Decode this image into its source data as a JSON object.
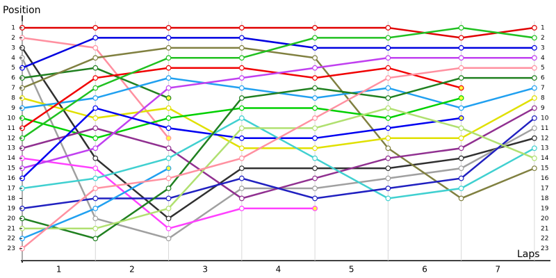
{
  "chart_data": {
    "type": "line",
    "x_label": "Laps",
    "y_label": "Position",
    "x": [
      0,
      1,
      2,
      3,
      4,
      5,
      6,
      7
    ],
    "xlim": [
      0,
      7.2
    ],
    "xticks": [
      {
        "value": 0.5,
        "label": "1"
      },
      {
        "value": 1.5,
        "label": "2"
      },
      {
        "value": 2.5,
        "label": "3"
      },
      {
        "value": 3.5,
        "label": "4"
      },
      {
        "value": 4.5,
        "label": "5"
      },
      {
        "value": 5.5,
        "label": "6"
      },
      {
        "value": 6.5,
        "label": "7"
      }
    ],
    "ylim": [
      24.2,
      0
    ],
    "yticks": [
      1,
      2,
      3,
      4,
      5,
      6,
      7,
      8,
      9,
      10,
      11,
      12,
      13,
      14,
      15,
      16,
      17,
      18,
      19,
      20,
      21,
      22,
      23
    ],
    "grid": true,
    "series": [
      {
        "color": "#e00000",
        "values": [
          1,
          1,
          1,
          1,
          1,
          1,
          2,
          1
        ]
      },
      {
        "color": "#ff90a0",
        "values": [
          2,
          3,
          12,
          null,
          null,
          null,
          null,
          null
        ]
      },
      {
        "color": "#303030",
        "values": [
          3,
          14,
          20,
          15,
          15,
          15,
          14,
          12
        ]
      },
      {
        "color": "#a0a0a0",
        "values": [
          4,
          20,
          22,
          17,
          17,
          16,
          15,
          11
        ]
      },
      {
        "color": "#0000e0",
        "values": [
          5,
          2,
          2,
          2,
          3,
          3,
          3,
          3
        ]
      },
      {
        "color": "#208020",
        "values": [
          6,
          5,
          8,
          null,
          null,
          null,
          null,
          null
        ]
      },
      {
        "color": "#808040",
        "values": [
          7,
          4,
          3,
          3,
          4,
          13,
          18,
          15
        ]
      },
      {
        "color": "#e0e000",
        "values": [
          8,
          10,
          9,
          13,
          13,
          12,
          12,
          8
        ]
      },
      {
        "color": "#20a0f0",
        "values": [
          9,
          8,
          6,
          7,
          8,
          7,
          9,
          7
        ]
      },
      {
        "color": "#00d000",
        "values": [
          10,
          12,
          10,
          9,
          9,
          10,
          8,
          null
        ]
      },
      {
        "color": "#f00000",
        "values": [
          11,
          6,
          5,
          5,
          6,
          5,
          7,
          null
        ]
      },
      {
        "color": "#20c020",
        "values": [
          12,
          7,
          4,
          4,
          2,
          2,
          1,
          2
        ]
      },
      {
        "color": "#903090",
        "values": [
          13,
          11,
          13,
          18,
          16,
          14,
          13,
          9
        ]
      },
      {
        "color": "#ff40ff",
        "values": [
          14,
          15,
          21,
          19,
          19,
          null,
          null,
          null
        ]
      },
      {
        "color": "#c040f0",
        "values": [
          15,
          13,
          7,
          6,
          5,
          4,
          4,
          4
        ]
      },
      {
        "color": "#0000f0",
        "values": [
          16,
          9,
          11,
          12,
          12,
          11,
          10,
          null
        ]
      },
      {
        "color": "#40d0d0",
        "values": [
          17,
          16,
          14,
          10,
          14,
          18,
          17,
          13
        ]
      },
      {
        "color": "#2020c0",
        "values": [
          19,
          18,
          18,
          16,
          18,
          17,
          16,
          10
        ]
      },
      {
        "color": "#208020",
        "values": [
          20,
          22,
          17,
          8,
          7,
          8,
          6,
          6
        ]
      },
      {
        "color": "#b0e070",
        "values": [
          21,
          21,
          19,
          11,
          11,
          9,
          11,
          14
        ]
      },
      {
        "color": "#20a0f0",
        "values": [
          22,
          19,
          15,
          null,
          null,
          null,
          null,
          null
        ]
      },
      {
        "color": "#ff90a0",
        "values": [
          23,
          17,
          16,
          14,
          10,
          6,
          5,
          5
        ]
      }
    ]
  }
}
